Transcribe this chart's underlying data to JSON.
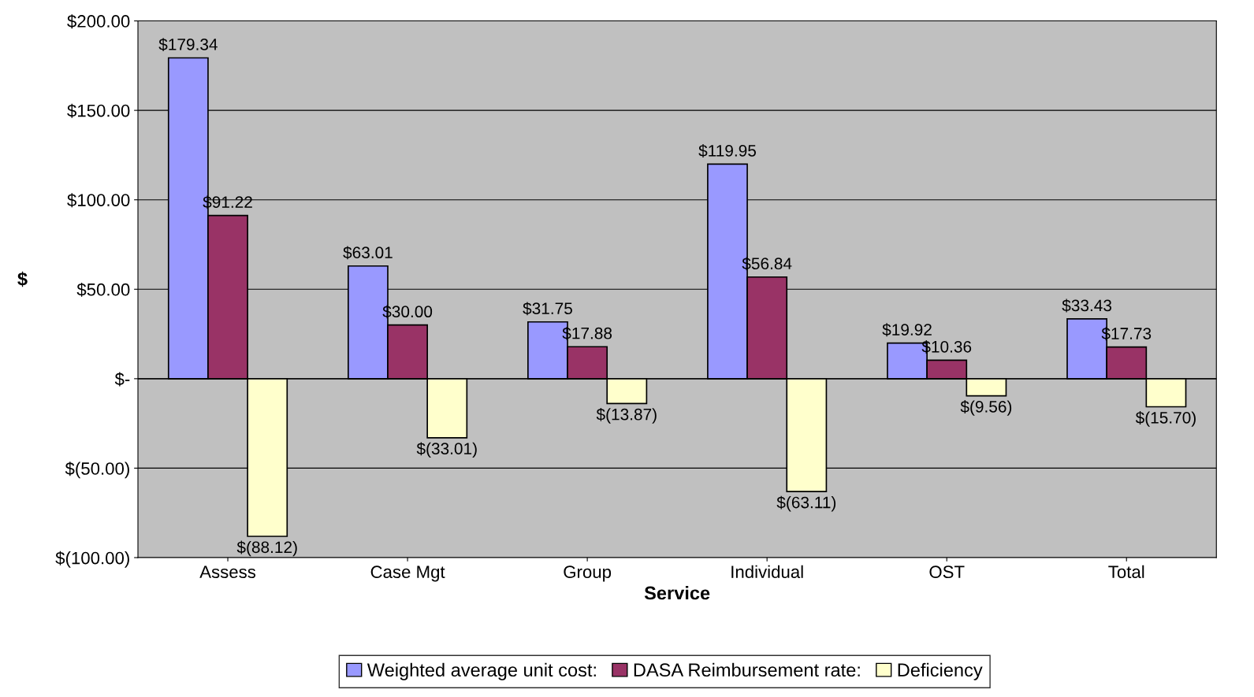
{
  "chart_data": {
    "type": "bar",
    "xlabel": "Service",
    "ylabel": "$",
    "categories": [
      "Assess",
      "Case Mgt",
      "Group",
      "Individual",
      "OST",
      "Total"
    ],
    "series": [
      {
        "name": "Weighted average unit cost:",
        "color": "#9999ff",
        "values": [
          179.34,
          63.01,
          31.75,
          119.95,
          19.92,
          33.43
        ],
        "value_labels": [
          "$179.34",
          "$63.01",
          "$31.75",
          "$119.95",
          "$19.92",
          "$33.43"
        ]
      },
      {
        "name": "DASA Reimbursement rate:",
        "color": "#993366",
        "values": [
          91.22,
          30.0,
          17.88,
          56.84,
          10.36,
          17.73
        ],
        "value_labels": [
          "$91.22",
          "$30.00",
          "$17.88",
          "$56.84",
          "$10.36",
          "$17.73"
        ]
      },
      {
        "name": "Deficiency",
        "color": "#ffffcc",
        "values": [
          -88.12,
          -33.01,
          -13.87,
          -63.11,
          -9.56,
          -15.7
        ],
        "value_labels": [
          "$(88.12)",
          "$(33.01)",
          "$(13.87)",
          "$(63.11)",
          "$(9.56)",
          "$(15.70)"
        ]
      }
    ],
    "ylim": [
      -100,
      200
    ],
    "yticks": [
      {
        "value": 200,
        "label": "$200.00"
      },
      {
        "value": 150,
        "label": "$150.00"
      },
      {
        "value": 100,
        "label": "$100.00"
      },
      {
        "value": 50,
        "label": "$50.00"
      },
      {
        "value": 0,
        "label": "$-"
      },
      {
        "value": -50,
        "label": "$(50.00)"
      },
      {
        "value": -100,
        "label": "$(100.00)"
      }
    ],
    "grid": "y",
    "legend": "bottom"
  }
}
